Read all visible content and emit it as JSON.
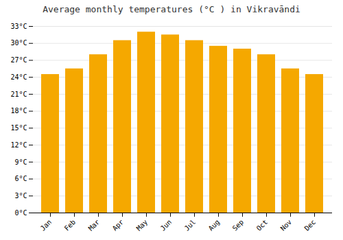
{
  "chart_data": {
    "type": "bar",
    "title": "Average monthly temperatures (°C ) in Vikravāndi",
    "categories": [
      "Jan",
      "Feb",
      "Mar",
      "Apr",
      "May",
      "Jun",
      "Jul",
      "Aug",
      "Sep",
      "Oct",
      "Nov",
      "Dec"
    ],
    "values": [
      24.5,
      25.5,
      28.0,
      30.5,
      32.0,
      31.5,
      30.5,
      29.5,
      29.0,
      28.0,
      25.5,
      24.5
    ],
    "color": "#F5A800",
    "ylim": [
      0,
      33
    ],
    "yticks": [
      {
        "value": 0,
        "label": "0°C"
      },
      {
        "value": 3,
        "label": "3°C"
      },
      {
        "value": 6,
        "label": "6°C"
      },
      {
        "value": 9,
        "label": "9°C"
      },
      {
        "value": 12,
        "label": "12°C"
      },
      {
        "value": 15,
        "label": "15°C"
      },
      {
        "value": 18,
        "label": "18°C"
      },
      {
        "value": 21,
        "label": "21°C"
      },
      {
        "value": 24,
        "label": "24°C"
      },
      {
        "value": 27,
        "label": "27°C"
      },
      {
        "value": 30,
        "label": "30°C"
      },
      {
        "value": 33,
        "label": "33°C"
      }
    ],
    "grid": true
  }
}
